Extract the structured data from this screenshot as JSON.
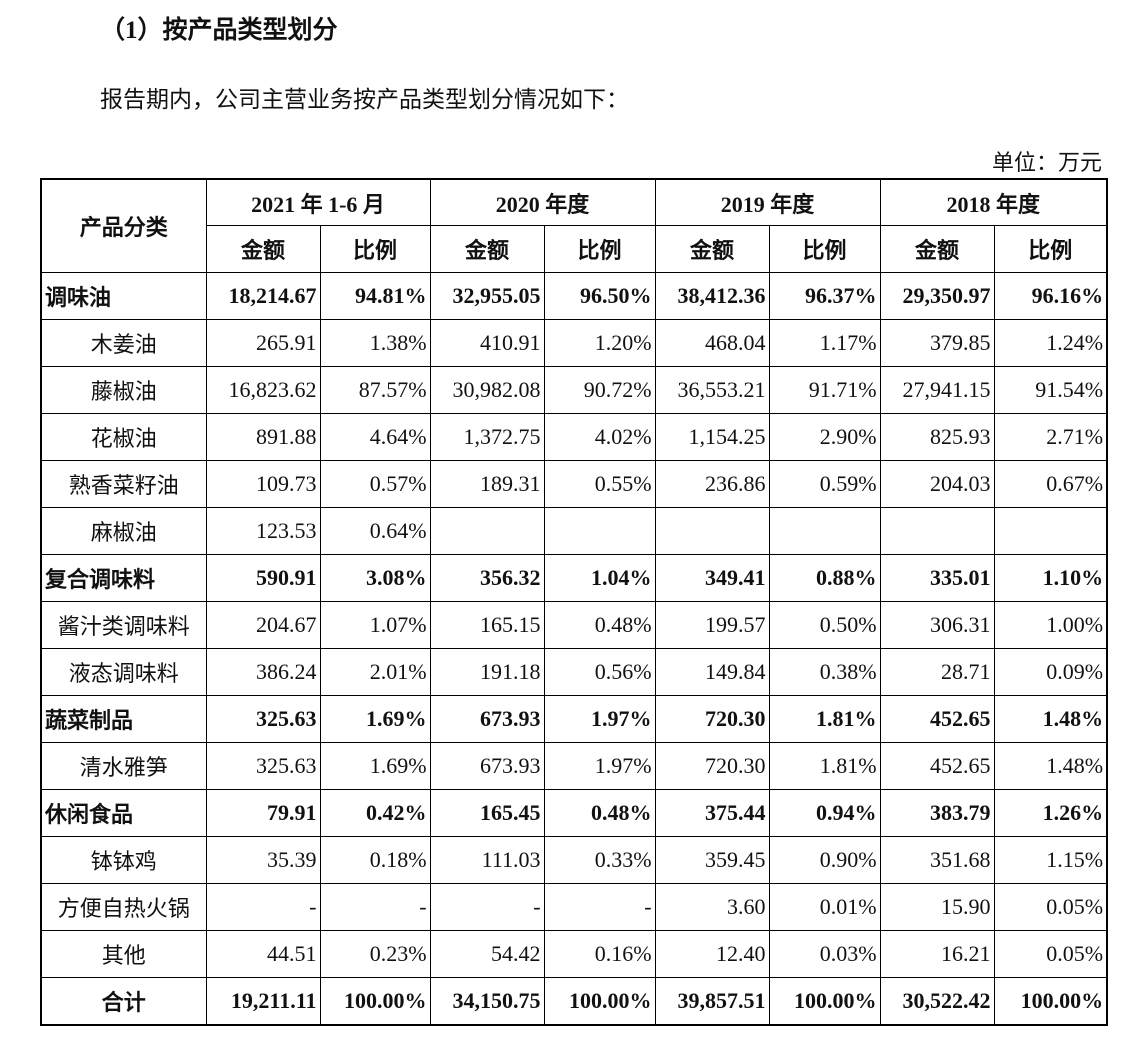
{
  "heading": "（1）按产品类型划分",
  "intro": "报告期内，公司主营业务按产品类型划分情况如下：",
  "unit": "单位：万元",
  "table": {
    "corner": "产品分类",
    "periods": [
      "2021 年 1-6 月",
      "2020 年度",
      "2019 年度",
      "2018 年度"
    ],
    "subheaders": [
      "金额",
      "比例",
      "金额",
      "比例",
      "金额",
      "比例",
      "金额",
      "比例"
    ],
    "rows": [
      {
        "label": "调味油",
        "style": "category",
        "cells": [
          "18,214.67",
          "94.81%",
          "32,955.05",
          "96.50%",
          "38,412.36",
          "96.37%",
          "29,350.97",
          "96.16%"
        ]
      },
      {
        "label": "木姜油",
        "style": "item",
        "cells": [
          "265.91",
          "1.38%",
          "410.91",
          "1.20%",
          "468.04",
          "1.17%",
          "379.85",
          "1.24%"
        ]
      },
      {
        "label": "藤椒油",
        "style": "item",
        "cells": [
          "16,823.62",
          "87.57%",
          "30,982.08",
          "90.72%",
          "36,553.21",
          "91.71%",
          "27,941.15",
          "91.54%"
        ]
      },
      {
        "label": "花椒油",
        "style": "item",
        "cells": [
          "891.88",
          "4.64%",
          "1,372.75",
          "4.02%",
          "1,154.25",
          "2.90%",
          "825.93",
          "2.71%"
        ]
      },
      {
        "label": "熟香菜籽油",
        "style": "item",
        "cells": [
          "109.73",
          "0.57%",
          "189.31",
          "0.55%",
          "236.86",
          "0.59%",
          "204.03",
          "0.67%"
        ]
      },
      {
        "label": "麻椒油",
        "style": "item",
        "cells": [
          "123.53",
          "0.64%",
          null,
          null,
          null,
          null,
          null,
          null
        ]
      },
      {
        "label": "复合调味料",
        "style": "category",
        "cells": [
          "590.91",
          "3.08%",
          "356.32",
          "1.04%",
          "349.41",
          "0.88%",
          "335.01",
          "1.10%"
        ]
      },
      {
        "label": "酱汁类调味料",
        "style": "item",
        "cells": [
          "204.67",
          "1.07%",
          "165.15",
          "0.48%",
          "199.57",
          "0.50%",
          "306.31",
          "1.00%"
        ]
      },
      {
        "label": "液态调味料",
        "style": "item",
        "cells": [
          "386.24",
          "2.01%",
          "191.18",
          "0.56%",
          "149.84",
          "0.38%",
          "28.71",
          "0.09%"
        ]
      },
      {
        "label": "蔬菜制品",
        "style": "category",
        "cells": [
          "325.63",
          "1.69%",
          "673.93",
          "1.97%",
          "720.30",
          "1.81%",
          "452.65",
          "1.48%"
        ]
      },
      {
        "label": "清水雅笋",
        "style": "item",
        "cells": [
          "325.63",
          "1.69%",
          "673.93",
          "1.97%",
          "720.30",
          "1.81%",
          "452.65",
          "1.48%"
        ]
      },
      {
        "label": "休闲食品",
        "style": "category",
        "cells": [
          "79.91",
          "0.42%",
          "165.45",
          "0.48%",
          "375.44",
          "0.94%",
          "383.79",
          "1.26%"
        ]
      },
      {
        "label": "钵钵鸡",
        "style": "item",
        "cells": [
          "35.39",
          "0.18%",
          "111.03",
          "0.33%",
          "359.45",
          "0.90%",
          "351.68",
          "1.15%"
        ]
      },
      {
        "label": "方便自热火锅",
        "style": "item",
        "cells": [
          "-",
          "-",
          "-",
          "-",
          "3.60",
          "0.01%",
          "15.90",
          "0.05%"
        ]
      },
      {
        "label": "其他",
        "style": "item",
        "cells": [
          "44.51",
          "0.23%",
          "54.42",
          "0.16%",
          "12.40",
          "0.03%",
          "16.21",
          "0.05%"
        ]
      },
      {
        "label": "合计",
        "style": "total",
        "cells": [
          "19,211.11",
          "100.00%",
          "34,150.75",
          "100.00%",
          "39,857.51",
          "100.00%",
          "30,522.42",
          "100.00%"
        ]
      }
    ]
  }
}
